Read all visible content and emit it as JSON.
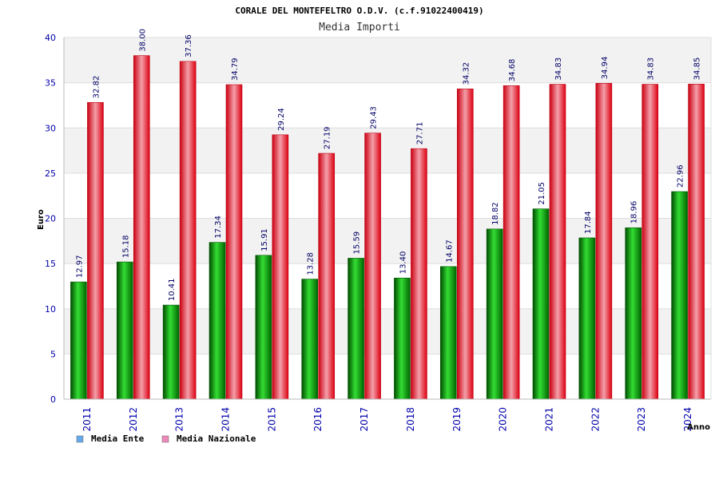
{
  "chart_data": {
    "type": "bar",
    "title": "CORALE DEL MONTEFELTRO O.D.V. (c.f.91022400419)",
    "subtitle": "Media Importi",
    "ylabel": "Euro",
    "xlabel": "Anno",
    "ylim": [
      0,
      40
    ],
    "yticks": [
      0,
      5,
      10,
      15,
      20,
      25,
      30,
      35,
      40
    ],
    "categories": [
      "2011",
      "2012",
      "2013",
      "2014",
      "2015",
      "2016",
      "2017",
      "2018",
      "2019",
      "2020",
      "2021",
      "2022",
      "2023",
      "2024"
    ],
    "series": [
      {
        "name": "Media Ente",
        "values": [
          12.97,
          15.18,
          10.41,
          17.34,
          15.91,
          13.28,
          15.59,
          13.4,
          14.67,
          18.82,
          21.05,
          17.84,
          18.96,
          22.96
        ],
        "labels": [
          "12.97",
          "15.18",
          "10.41",
          "17.34",
          "15.91",
          "13.28",
          "15.59",
          "13.40",
          "14.67",
          "18.82",
          "21.05",
          "17.84",
          "18.96",
          "22.96"
        ],
        "color": "#00aa00"
      },
      {
        "name": "Media Nazionale",
        "values": [
          32.82,
          38.0,
          37.36,
          34.79,
          29.24,
          27.19,
          29.43,
          27.71,
          34.32,
          34.68,
          34.83,
          34.94,
          34.83,
          34.85
        ],
        "labels": [
          "32.82",
          "38.00",
          "37.36",
          "34.79",
          "29.24",
          "27.19",
          "29.43",
          "27.71",
          "34.32",
          "34.68",
          "34.83",
          "34.94",
          "34.83",
          "34.85"
        ],
        "color": "#ee1122"
      }
    ],
    "legend": {
      "placement": "bottom-left",
      "colors": [
        "#66aaee",
        "#ee88bb"
      ]
    },
    "grid": true
  }
}
